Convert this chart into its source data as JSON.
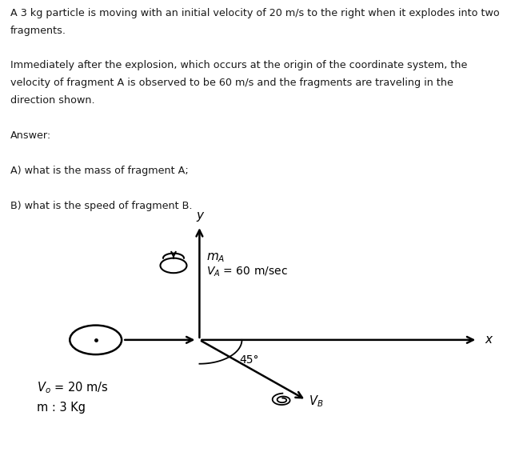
{
  "text_lines": [
    "A 3 kg particle is moving with an initial velocity of 20 m/s to the right when it explodes into two",
    "fragments.",
    "",
    "Immediately after the explosion, which occurs at the origin of the coordinate system, the",
    "velocity of fragment A is observed to be 60 m/s and the fragments are traveling in the",
    "direction shown.",
    "",
    "Answer:",
    "",
    "A) what is the mass of fragment A;",
    "",
    "B) what is the speed of fragment B."
  ],
  "diagram_bg": "#cdc3ae",
  "text_color": "#1a1a1a",
  "font_size_text": 9.2
}
